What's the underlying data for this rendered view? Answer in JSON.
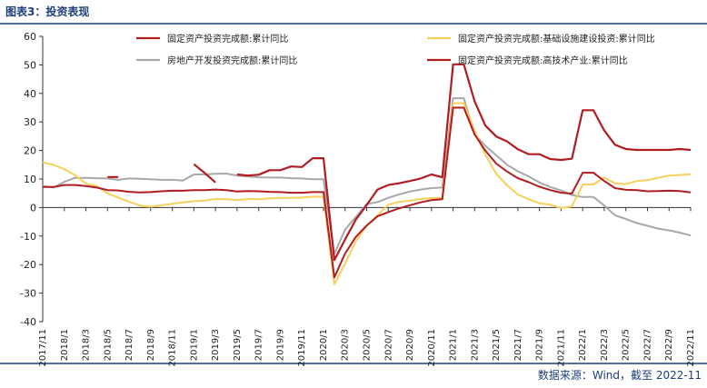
{
  "header": {
    "title": "图表3：投资表现"
  },
  "footer": {
    "source": "数据来源：Wind，截至 2022-11"
  },
  "colors": {
    "fai_total": "#b01c20",
    "infra": "#f7cf5a",
    "real_estate": "#a8a8a8",
    "hightech": "#b01c20",
    "frame": "#1f3f7a"
  },
  "chart_data": {
    "type": "line",
    "ylim": [
      -40,
      60
    ],
    "yticks": [
      -40,
      -30,
      -20,
      -10,
      0,
      10,
      20,
      30,
      40,
      50,
      60
    ],
    "legend_position": "top",
    "grid": false,
    "x": [
      "2017/11",
      "2017/12",
      "2018/1",
      "2018/2",
      "2018/3",
      "2018/4",
      "2018/5",
      "2018/6",
      "2018/7",
      "2018/8",
      "2018/9",
      "2018/10",
      "2018/11",
      "2018/12",
      "2019/1",
      "2019/2",
      "2019/3",
      "2019/4",
      "2019/5",
      "2019/6",
      "2019/7",
      "2019/8",
      "2019/9",
      "2019/10",
      "2019/11",
      "2019/12",
      "2020/1",
      "2020/2",
      "2020/3",
      "2020/4",
      "2020/5",
      "2020/6",
      "2020/7",
      "2020/8",
      "2020/9",
      "2020/10",
      "2020/11",
      "2020/12",
      "2021/1",
      "2021/2",
      "2021/3",
      "2021/4",
      "2021/5",
      "2021/6",
      "2021/7",
      "2021/8",
      "2021/9",
      "2021/10",
      "2021/11",
      "2021/12",
      "2022/1",
      "2022/2",
      "2022/3",
      "2022/4",
      "2022/5",
      "2022/6",
      "2022/7",
      "2022/8",
      "2022/9",
      "2022/10",
      "2022/11"
    ],
    "xtick_labels": [
      "2017/11",
      "2018/1",
      "2018/3",
      "2018/5",
      "2018/7",
      "2018/9",
      "2018/11",
      "2019/1",
      "2019/3",
      "2019/5",
      "2019/7",
      "2019/9",
      "2019/11",
      "2020/1",
      "2020/3",
      "2020/5",
      "2020/7",
      "2020/9",
      "2020/11",
      "2021/1",
      "2021/3",
      "2021/5",
      "2021/7",
      "2021/9",
      "2021/11",
      "2022/1",
      "2022/3",
      "2022/5",
      "2022/7",
      "2022/9",
      "2022/11"
    ],
    "series": [
      {
        "key": "fai_total",
        "name": "固定资产投资完成额:累计同比",
        "values": [
          7.2,
          7.2,
          7.9,
          7.9,
          7.5,
          7.0,
          6.1,
          6.0,
          5.5,
          5.3,
          5.4,
          5.7,
          5.9,
          5.9,
          6.1,
          6.1,
          6.3,
          6.1,
          5.6,
          5.8,
          5.7,
          5.5,
          5.4,
          5.2,
          5.2,
          5.4,
          5.4,
          -24.5,
          -16.1,
          -10.3,
          -6.3,
          -3.1,
          -1.6,
          -0.3,
          0.8,
          1.8,
          2.6,
          2.9,
          35.0,
          35.0,
          25.6,
          19.9,
          15.4,
          12.6,
          10.3,
          8.9,
          7.3,
          6.1,
          5.2,
          4.9,
          12.2,
          12.2,
          9.3,
          6.8,
          6.2,
          6.1,
          5.7,
          5.8,
          5.9,
          5.8,
          5.3
        ]
      },
      {
        "key": "infra",
        "name": "固定资产投资完成额:基础设施建设投资:累计同比",
        "values": [
          15.8,
          15.0,
          13.4,
          11.3,
          8.4,
          7.5,
          5.0,
          3.5,
          2.0,
          0.7,
          0.3,
          0.8,
          1.3,
          1.8,
          2.2,
          2.5,
          3.0,
          2.9,
          2.6,
          3.0,
          2.9,
          3.2,
          3.4,
          3.4,
          3.5,
          3.8,
          3.8,
          -26.9,
          -19.7,
          -11.8,
          -6.3,
          -2.7,
          1.0,
          2.0,
          2.4,
          3.0,
          3.3,
          3.4,
          36.6,
          36.6,
          26.9,
          18.4,
          11.8,
          7.8,
          4.6,
          2.9,
          1.5,
          1.0,
          -0.2,
          0.4,
          8.1,
          8.1,
          10.5,
          8.5,
          8.2,
          9.3,
          9.6,
          10.4,
          11.2,
          11.4,
          11.7
        ]
      },
      {
        "key": "real_estate",
        "name": "房地产开发投资完成额:累计同比",
        "values": [
          7.5,
          7.0,
          9.0,
          10.4,
          10.4,
          10.3,
          10.2,
          9.7,
          10.2,
          10.1,
          9.9,
          9.7,
          9.7,
          9.5,
          11.6,
          11.6,
          11.8,
          11.9,
          11.2,
          10.9,
          10.6,
          10.5,
          10.5,
          10.3,
          10.2,
          9.9,
          9.9,
          -16.3,
          -7.7,
          -3.3,
          1.2,
          1.9,
          3.4,
          4.6,
          5.6,
          6.3,
          6.8,
          7.0,
          38.3,
          38.3,
          25.6,
          21.6,
          18.3,
          15.0,
          12.7,
          10.9,
          8.8,
          7.2,
          6.0,
          4.4,
          3.7,
          3.7,
          0.7,
          -2.7,
          -4.0,
          -5.4,
          -6.4,
          -7.4,
          -8.0,
          -8.8,
          -9.8
        ]
      },
      {
        "key": "hightech",
        "name": "固定资产投资完成额:高技术产业:累计同比",
        "values": [
          null,
          null,
          null,
          null,
          null,
          null,
          10.7,
          10.7,
          null,
          null,
          null,
          null,
          null,
          null,
          15.2,
          12.1,
          8.8,
          null,
          11.6,
          11.2,
          11.5,
          13.1,
          13.1,
          14.4,
          14.2,
          17.3,
          17.3,
          -18.4,
          -11.2,
          -4.2,
          0.9,
          6.3,
          7.9,
          8.5,
          9.3,
          10.2,
          11.6,
          10.6,
          50.2,
          50.2,
          37.2,
          28.7,
          24.9,
          23.2,
          20.4,
          18.7,
          18.7,
          17.0,
          16.7,
          17.1,
          34.1,
          34.1,
          27.0,
          22.0,
          20.5,
          20.2,
          20.2,
          20.2,
          20.2,
          20.5,
          20.2
        ]
      }
    ]
  }
}
